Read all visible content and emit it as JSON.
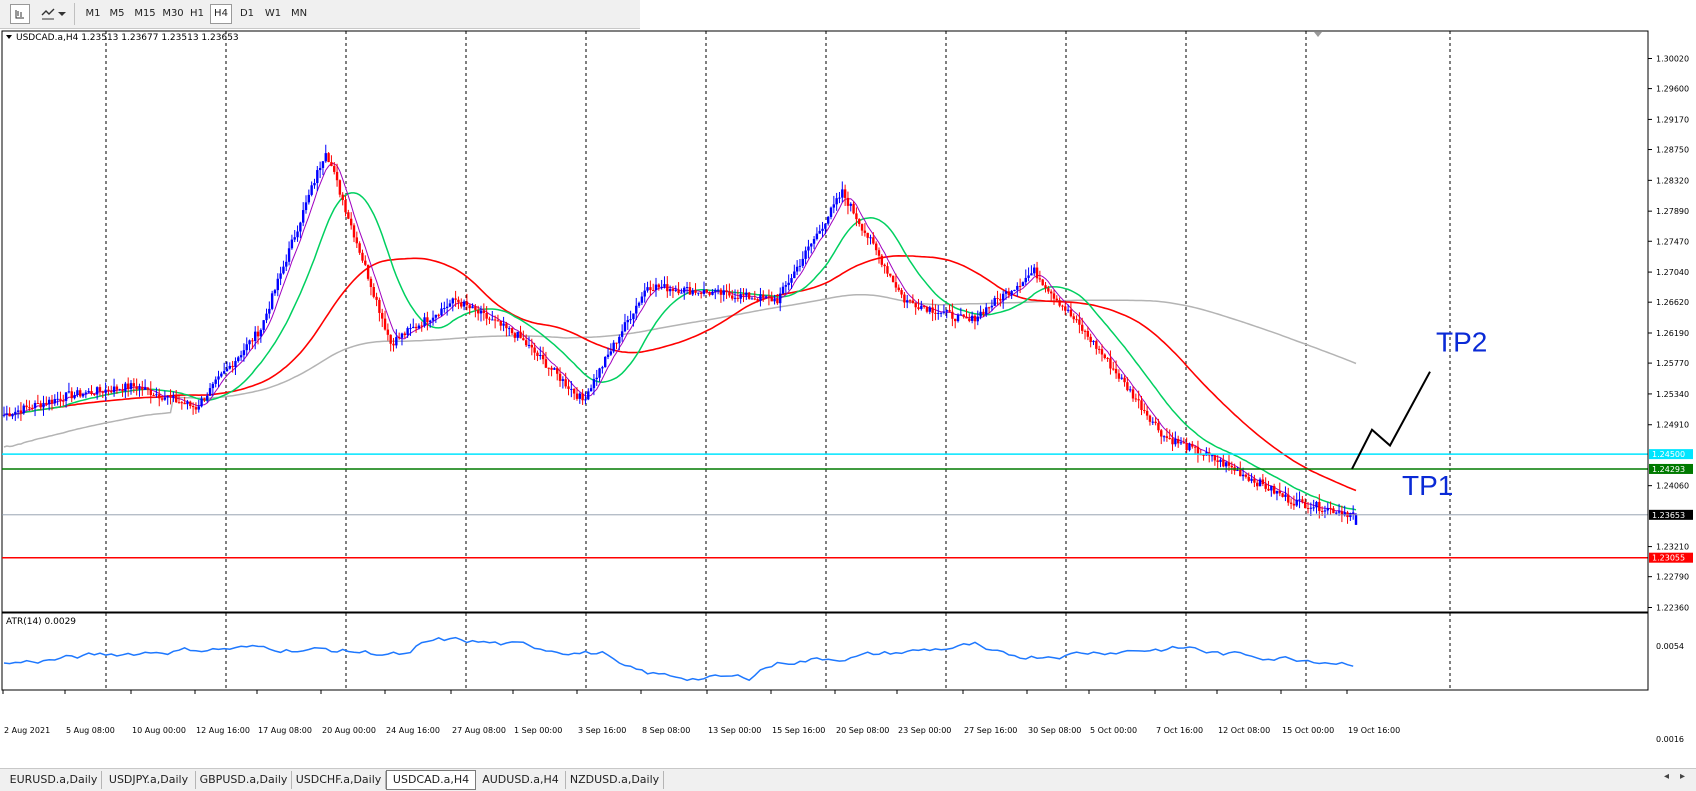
{
  "toolbar": {
    "icons": [
      "chart-icon",
      "line-tools-icon",
      "dropdown-arrow-icon"
    ],
    "timeframes": [
      "M1",
      "M5",
      "M15",
      "M30",
      "H1",
      "H4",
      "D1",
      "W1",
      "MN"
    ],
    "active_timeframe": "H4"
  },
  "chart": {
    "header": "USDCAD.a,H4  1.23513 1.23677 1.23513 1.23653",
    "atr_label": "ATR(14) 0.0029",
    "atr_axis": [
      "0.0054",
      "0.0016"
    ],
    "price_axis": [
      "1.30020",
      "1.29600",
      "1.29170",
      "1.28750",
      "1.28320",
      "1.27890",
      "1.27470",
      "1.27040",
      "1.26620",
      "1.26190",
      "1.25770",
      "1.25340",
      "1.24910",
      "1.24060",
      "1.23210",
      "1.22790",
      "1.22360"
    ],
    "date_axis": [
      "2 Aug 2021",
      "5 Aug 08:00",
      "10 Aug 00:00",
      "12 Aug 16:00",
      "17 Aug 08:00",
      "20 Aug 00:00",
      "24 Aug 16:00",
      "27 Aug 08:00",
      "1 Sep 00:00",
      "3 Sep 16:00",
      "8 Sep 08:00",
      "13 Sep 00:00",
      "15 Sep 16:00",
      "20 Sep 08:00",
      "23 Sep 00:00",
      "27 Sep 16:00",
      "30 Sep 08:00",
      "5 Oct 00:00",
      "7 Oct 16:00",
      "12 Oct 08:00",
      "15 Oct 00:00",
      "19 Oct 16:00"
    ],
    "levels": [
      {
        "name": "cyan-level",
        "value": "1.24500",
        "price": 1.245,
        "color": "#00e5ff"
      },
      {
        "name": "green-level",
        "value": "1.24293",
        "price": 1.24293,
        "color": "#007a00"
      },
      {
        "name": "current-price",
        "value": "1.23653",
        "price": 1.23653,
        "color": "#000000"
      },
      {
        "name": "red-level",
        "value": "1.23055",
        "price": 1.23055,
        "color": "#ff0000"
      }
    ],
    "annotations": {
      "tp1": "TP1",
      "tp2": "TP2"
    },
    "colors": {
      "bull": "#0000ff",
      "bear": "#ff0000",
      "ma_fast": "#a000c0",
      "ma_mid": "#00d060",
      "ma_slow": "#ff0000",
      "ma_long": "#b4b4b4",
      "atr": "#1e78ff",
      "annotation": "#0a2ad6"
    }
  },
  "chart_data": {
    "type": "candlestick",
    "symbol": "USDCAD.a",
    "timeframe": "H4",
    "ohlc_last": {
      "open": 1.23513,
      "high": 1.23677,
      "low": 1.23513,
      "close": 1.23653
    },
    "ylim": [
      1.2236,
      1.3002
    ],
    "close_path": [
      {
        "date": "2 Aug 2021",
        "close": 1.2505
      },
      {
        "date": "5 Aug 08:00",
        "close": 1.2532
      },
      {
        "date": "10 Aug 00:00",
        "close": 1.2545
      },
      {
        "date": "12 Aug 16:00",
        "close": 1.2515
      },
      {
        "date": "17 Aug 08:00",
        "close": 1.2625
      },
      {
        "date": "20 Aug 00:00",
        "close": 1.2875
      },
      {
        "date": "24 Aug 16:00",
        "close": 1.2605
      },
      {
        "date": "27 Aug 08:00",
        "close": 1.2665
      },
      {
        "date": "1 Sep 00:00",
        "close": 1.2615
      },
      {
        "date": "3 Sep 16:00",
        "close": 1.2525
      },
      {
        "date": "8 Sep 08:00",
        "close": 1.2685
      },
      {
        "date": "13 Sep 00:00",
        "close": 1.2675
      },
      {
        "date": "15 Sep 16:00",
        "close": 1.2665
      },
      {
        "date": "20 Sep 08:00",
        "close": 1.2815
      },
      {
        "date": "23 Sep 00:00",
        "close": 1.2665
      },
      {
        "date": "27 Sep 16:00",
        "close": 1.2635
      },
      {
        "date": "30 Sep 08:00",
        "close": 1.2705
      },
      {
        "date": "5 Oct 00:00",
        "close": 1.2595
      },
      {
        "date": "7 Oct 16:00",
        "close": 1.2475
      },
      {
        "date": "12 Oct 08:00",
        "close": 1.2435
      },
      {
        "date": "15 Oct 00:00",
        "close": 1.2385
      },
      {
        "date": "19 Oct 16:00",
        "close": 1.23653
      }
    ],
    "atr_range": [
      0.0016,
      0.0054
    ]
  },
  "tabs": {
    "items": [
      "EURUSD.a,Daily",
      "USDJPY.a,Daily",
      "GBPUSD.a,Daily",
      "USDCHF.a,Daily",
      "USDCAD.a,H4",
      "AUDUSD.a,H4",
      "NZDUSD.a,Daily"
    ],
    "active": "USDCAD.a,H4",
    "scroll_left": "◂",
    "scroll_right": "▸"
  }
}
